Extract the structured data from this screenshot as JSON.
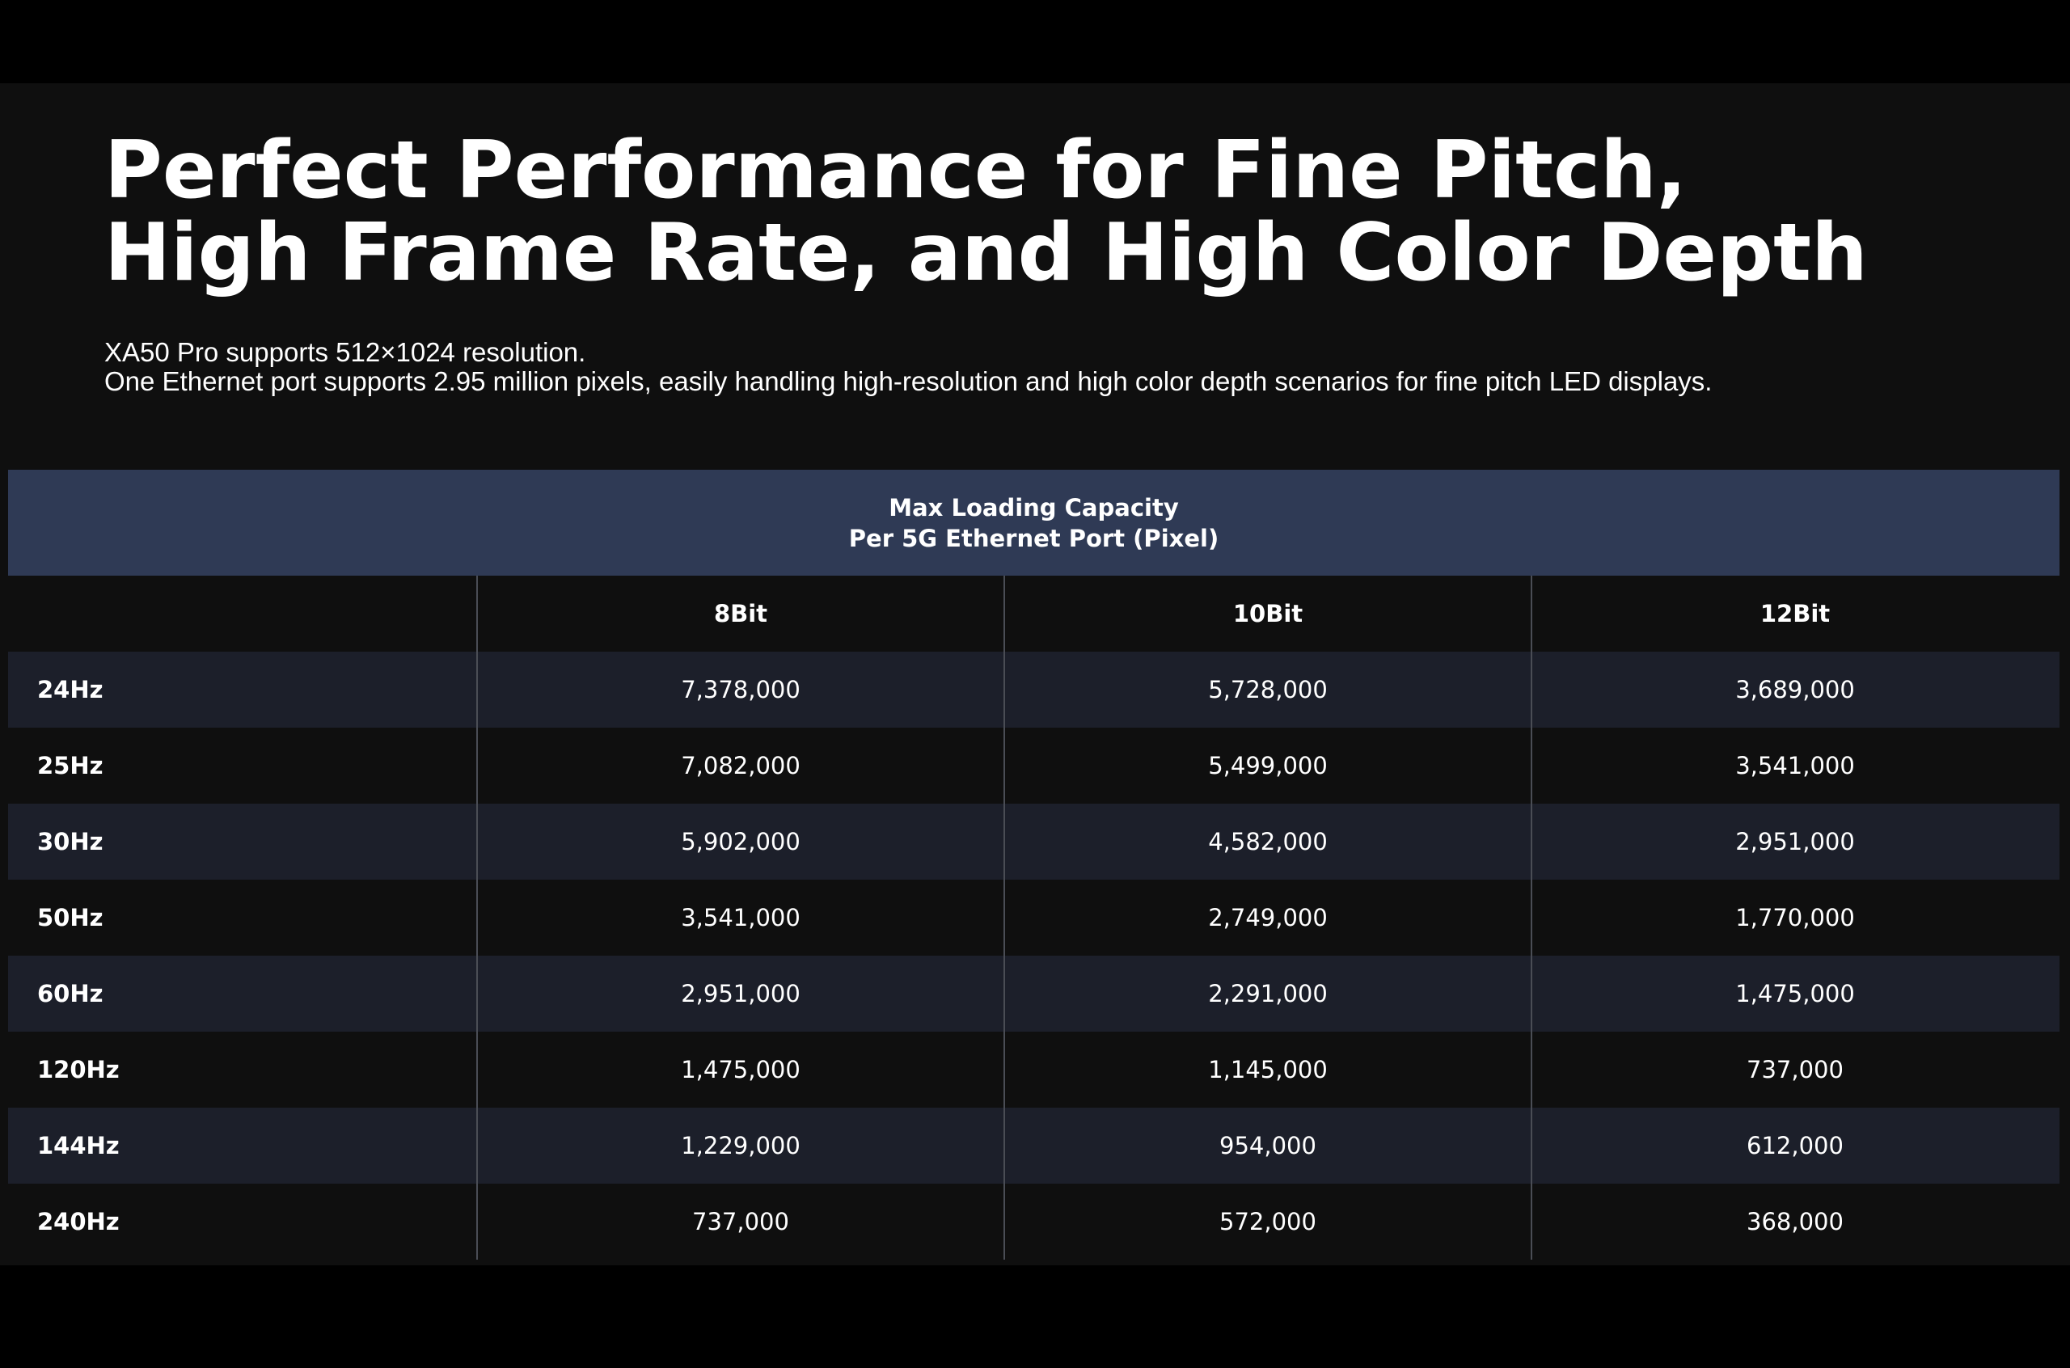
{
  "title": {
    "line1": "Perfect Performance for Fine Pitch,",
    "line2": "High Frame Rate, and High Color Depth"
  },
  "subtitle": {
    "line1": "XA50 Pro supports 512×1024 resolution.",
    "line2": "One Ethernet port supports 2.95 million pixels, easily handling high-resolution and high color depth scenarios for fine pitch LED displays."
  },
  "table": {
    "header_line1": "Max Loading Capacity",
    "header_line2": "Per 5G Ethernet Port (Pixel)",
    "columns": [
      "",
      "8Bit",
      "10Bit",
      "12Bit"
    ],
    "rows": [
      [
        "24Hz",
        "7,378,000",
        "5,728,000",
        "3,689,000"
      ],
      [
        "25Hz",
        "7,082,000",
        "5,499,000",
        "3,541,000"
      ],
      [
        "30Hz",
        "5,902,000",
        "4,582,000",
        "2,951,000"
      ],
      [
        "50Hz",
        "3,541,000",
        "2,749,000",
        "1,770,000"
      ],
      [
        "60Hz",
        "2,951,000",
        "2,291,000",
        "1,475,000"
      ],
      [
        "120Hz",
        "1,475,000",
        "1,145,000",
        "737,000"
      ],
      [
        "144Hz",
        "1,229,000",
        "954,000",
        "612,000"
      ],
      [
        "240Hz",
        "737,000",
        "572,000",
        "368,000"
      ]
    ]
  },
  "colors": {
    "header_band": "#2f3a55",
    "alt_row": "#1c1f2a",
    "background": "#0f0f0f"
  }
}
